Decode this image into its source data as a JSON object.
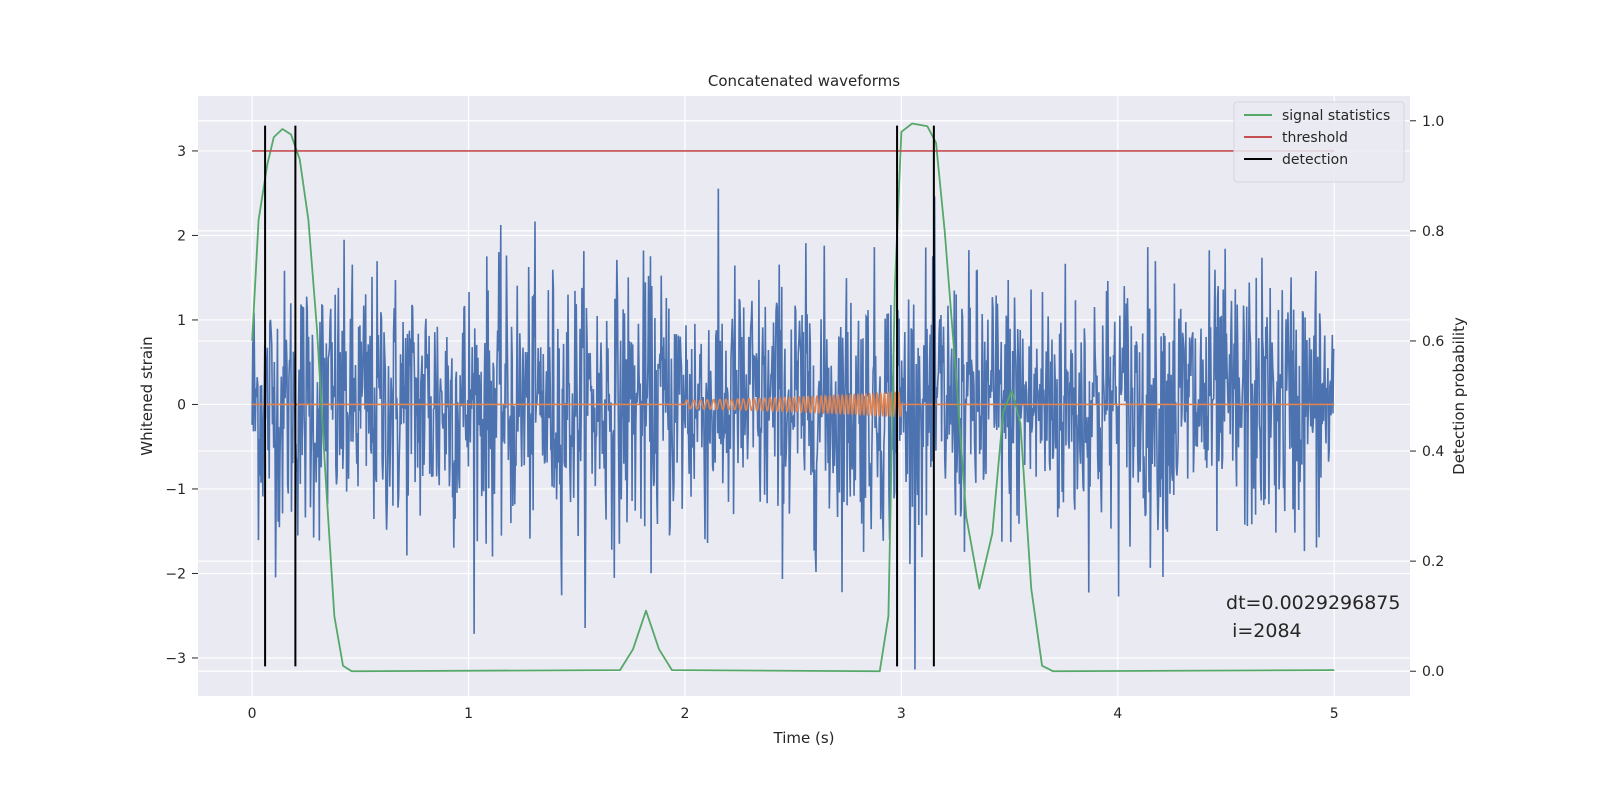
{
  "chart_data": {
    "type": "line",
    "title": "Concatenated waveforms",
    "xlabel": "Time (s)",
    "ylabel": "Whitened strain",
    "y2label": "Detection probability",
    "xlim": [
      -0.25,
      5.35
    ],
    "ylim": [
      -3.45,
      3.65
    ],
    "y2lim": [
      -0.045,
      1.045
    ],
    "x_ticks": [
      0,
      1,
      2,
      3,
      4,
      5
    ],
    "y_ticks": [
      -3,
      -2,
      -1,
      0,
      1,
      2,
      3
    ],
    "y_tick_labels": [
      "−3",
      "−2",
      "−1",
      "0",
      "1",
      "2",
      "3"
    ],
    "y2_ticks": [
      0.0,
      0.2,
      0.4,
      0.6,
      0.8,
      1.0
    ],
    "y2_tick_labels": [
      "0.0",
      "0.2",
      "0.4",
      "0.6",
      "0.8",
      "1.0"
    ],
    "grid": true,
    "legend_position": "top-right",
    "colors": {
      "strain": "#4c72b0",
      "injection": "#dd8452",
      "statistic": "#55a868",
      "threshold": "#c44e52",
      "detection": "#000000",
      "background": "#eaeaf2",
      "grid": "#ffffff"
    },
    "series": [
      {
        "name": "",
        "axis": "left",
        "kind": "noise",
        "x_range": [
          0,
          5
        ],
        "sigma": 0.78,
        "max_abs": 3.3
      },
      {
        "name": "",
        "axis": "left",
        "kind": "chirp",
        "x_range": [
          2.0,
          3.0
        ],
        "amplitude_range": [
          0.05,
          0.14
        ],
        "freq_range_hz": [
          30,
          62
        ]
      },
      {
        "name": "signal statistics",
        "axis": "right",
        "points": [
          [
            0.0,
            0.6
          ],
          [
            0.03,
            0.82
          ],
          [
            0.07,
            0.92
          ],
          [
            0.1,
            0.97
          ],
          [
            0.14,
            0.985
          ],
          [
            0.18,
            0.975
          ],
          [
            0.22,
            0.93
          ],
          [
            0.26,
            0.82
          ],
          [
            0.3,
            0.62
          ],
          [
            0.34,
            0.35
          ],
          [
            0.38,
            0.1
          ],
          [
            0.42,
            0.01
          ],
          [
            0.46,
            0.0
          ],
          [
            1.7,
            0.002
          ],
          [
            1.76,
            0.04
          ],
          [
            1.82,
            0.11
          ],
          [
            1.88,
            0.04
          ],
          [
            1.94,
            0.002
          ],
          [
            2.9,
            0.0
          ],
          [
            2.94,
            0.1
          ],
          [
            2.97,
            0.7
          ],
          [
            3.0,
            0.98
          ],
          [
            3.05,
            0.995
          ],
          [
            3.12,
            0.99
          ],
          [
            3.16,
            0.96
          ],
          [
            3.2,
            0.8
          ],
          [
            3.25,
            0.55
          ],
          [
            3.3,
            0.28
          ],
          [
            3.36,
            0.15
          ],
          [
            3.42,
            0.25
          ],
          [
            3.47,
            0.47
          ],
          [
            3.51,
            0.51
          ],
          [
            3.55,
            0.45
          ],
          [
            3.6,
            0.15
          ],
          [
            3.65,
            0.01
          ],
          [
            3.7,
            0.0
          ],
          [
            5.0,
            0.002
          ]
        ]
      },
      {
        "name": "threshold",
        "axis": "left",
        "x": [
          0,
          5
        ],
        "y": [
          3.0,
          3.0
        ]
      },
      {
        "name": "detection",
        "axis": "left",
        "vlines": [
          0.06,
          0.2,
          2.98,
          3.15
        ],
        "y_range": [
          -3.1,
          3.3
        ]
      }
    ],
    "annotation": {
      "x": 4.5,
      "y": -2.42,
      "lines": [
        "dt=0.0029296875",
        " i=2084"
      ]
    }
  }
}
